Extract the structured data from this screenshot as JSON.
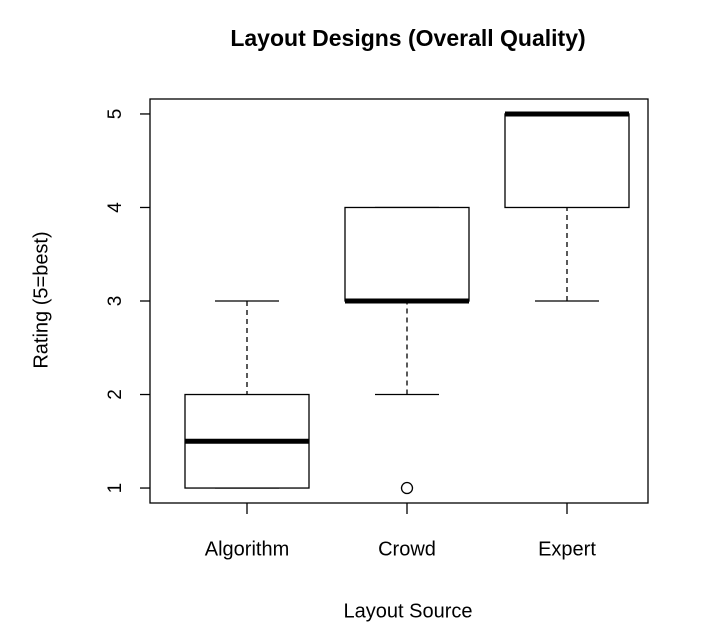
{
  "chart_data": {
    "type": "box",
    "title": "Layout Designs (Overall Quality)",
    "x_label": "Layout Source",
    "y_label": "Rating (5=best)",
    "categories": [
      "Algorithm",
      "Crowd",
      "Expert"
    ],
    "boxes": [
      {
        "min": 1,
        "q1": 1,
        "median": 1.5,
        "q3": 2,
        "max": 3,
        "outliers": []
      },
      {
        "min": 2,
        "q1": 3,
        "median": 3,
        "q3": 4,
        "max": 4,
        "outliers": [
          1
        ]
      },
      {
        "min": 3,
        "q1": 4,
        "median": 5,
        "q3": 5,
        "max": 5,
        "outliers": []
      }
    ],
    "color": "#000000",
    "ylim": [
      0.84,
      5.16
    ],
    "yticks": [
      1,
      2,
      3,
      4,
      5
    ]
  }
}
